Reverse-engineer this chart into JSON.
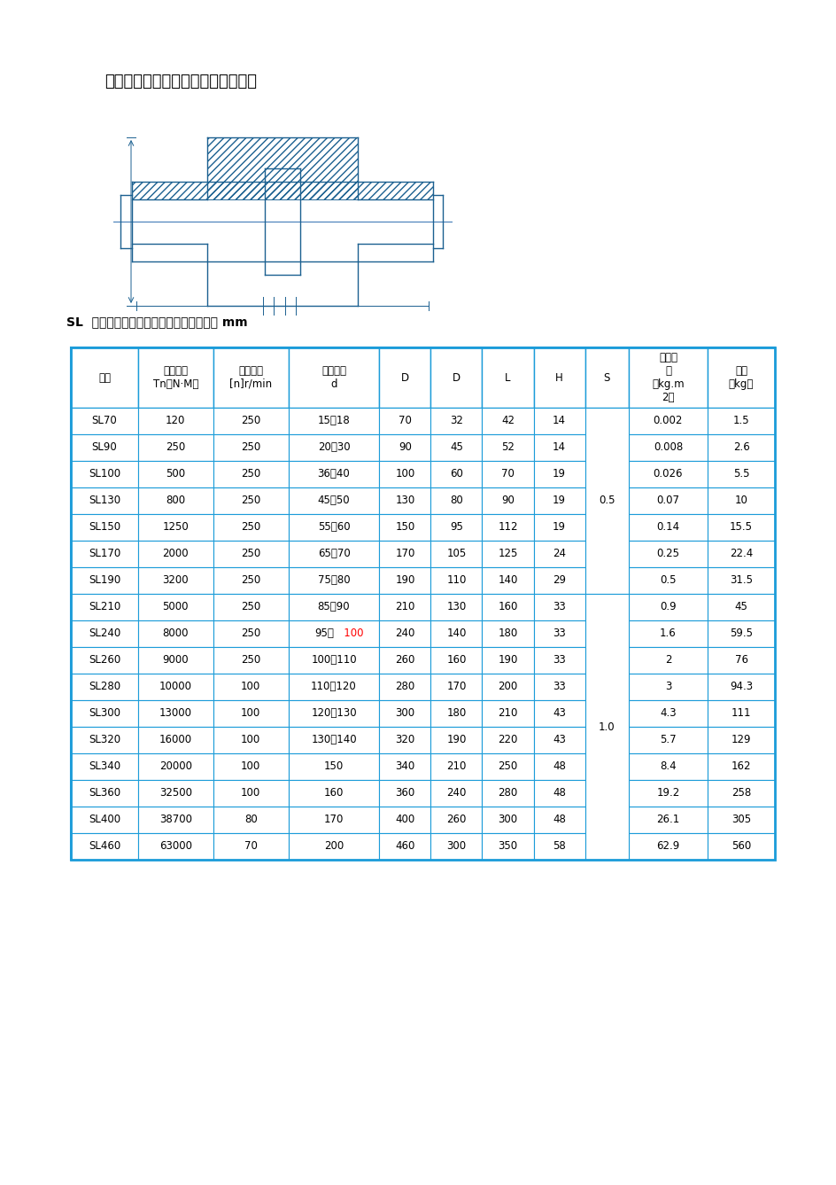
{
  "title": "十字滑块联轴器基本参数和主要尺寸",
  "subtitle": "SL  型十字滑块联轴器基本参数和主要尺寸 mm",
  "table_border_color": "#1B9CD9",
  "header_bg": "#E8F4FB",
  "bg_color": "#ffffff",
  "text_color": "#000000",
  "header_font_size": 9,
  "cell_font_size": 9,
  "headers": [
    [
      "规格",
      "公称转矩\nTn（N·M）",
      "许用转速\n[n]r/min",
      "轴孔直径\nd",
      "D",
      "D",
      "L",
      "H",
      "S",
      "转动惯\n量\n（kg.m\n2）",
      "重量\n（kg）"
    ]
  ],
  "rows": [
    [
      "SL70",
      "120",
      "250",
      "15～18",
      "70",
      "32",
      "42",
      "14",
      "",
      "0.002",
      "1.5"
    ],
    [
      "SL90",
      "250",
      "250",
      "20～30",
      "90",
      "45",
      "52",
      "14",
      "",
      "0.008",
      "2.6"
    ],
    [
      "SL100",
      "500",
      "250",
      "36～40",
      "100",
      "60",
      "70",
      "19",
      "",
      "0.026",
      "5.5"
    ],
    [
      "SL130",
      "800",
      "250",
      "45～50",
      "130",
      "80",
      "90",
      "19",
      "0.5",
      "0.07",
      "10"
    ],
    [
      "SL150",
      "1250",
      "250",
      "55～60",
      "150",
      "95",
      "112",
      "19",
      "",
      "0.14",
      "15.5"
    ],
    [
      "SL170",
      "2000",
      "250",
      "65～70",
      "170",
      "105",
      "125",
      "24",
      "",
      "0.25",
      "22.4"
    ],
    [
      "SL190",
      "3200",
      "250",
      "75～80",
      "190",
      "110",
      "140",
      "29",
      "",
      "0.5",
      "31.5"
    ],
    [
      "SL210",
      "5000",
      "250",
      "85～90",
      "210",
      "130",
      "160",
      "33",
      "",
      "0.9",
      "45"
    ],
    [
      "SL240",
      "8000",
      "250",
      "95～100",
      "240",
      "140",
      "180",
      "33",
      "",
      "1.6",
      "59.5"
    ],
    [
      "SL260",
      "9000",
      "250",
      "100～110",
      "260",
      "160",
      "190",
      "33",
      "",
      "2",
      "76"
    ],
    [
      "SL280",
      "10000",
      "100",
      "110～120",
      "280",
      "170",
      "200",
      "33",
      "",
      "3",
      "94.3"
    ],
    [
      "SL300",
      "13000",
      "100",
      "120～130",
      "300",
      "180",
      "210",
      "43",
      "",
      "4.3",
      "111"
    ],
    [
      "SL320",
      "16000",
      "100",
      "130～140",
      "320",
      "190",
      "220",
      "43",
      "1.0",
      "5.7",
      "129"
    ],
    [
      "SL340",
      "20000",
      "100",
      "150",
      "340",
      "210",
      "250",
      "48",
      "",
      "8.4",
      "162"
    ],
    [
      "SL360",
      "32500",
      "100",
      "160",
      "360",
      "240",
      "280",
      "48",
      "",
      "19.2",
      "258"
    ],
    [
      "SL400",
      "38700",
      "80",
      "170",
      "400",
      "260",
      "300",
      "48",
      "",
      "26.1",
      "305"
    ],
    [
      "SL460",
      "63000",
      "70",
      "200",
      "460",
      "300",
      "350",
      "58",
      "",
      "62.9",
      "560"
    ]
  ],
  "s_merge_rows": [
    [
      0,
      6
    ],
    [
      7,
      15
    ]
  ],
  "s_values": [
    "0.5",
    "1.0"
  ],
  "page_bg": "#f0f0f0"
}
